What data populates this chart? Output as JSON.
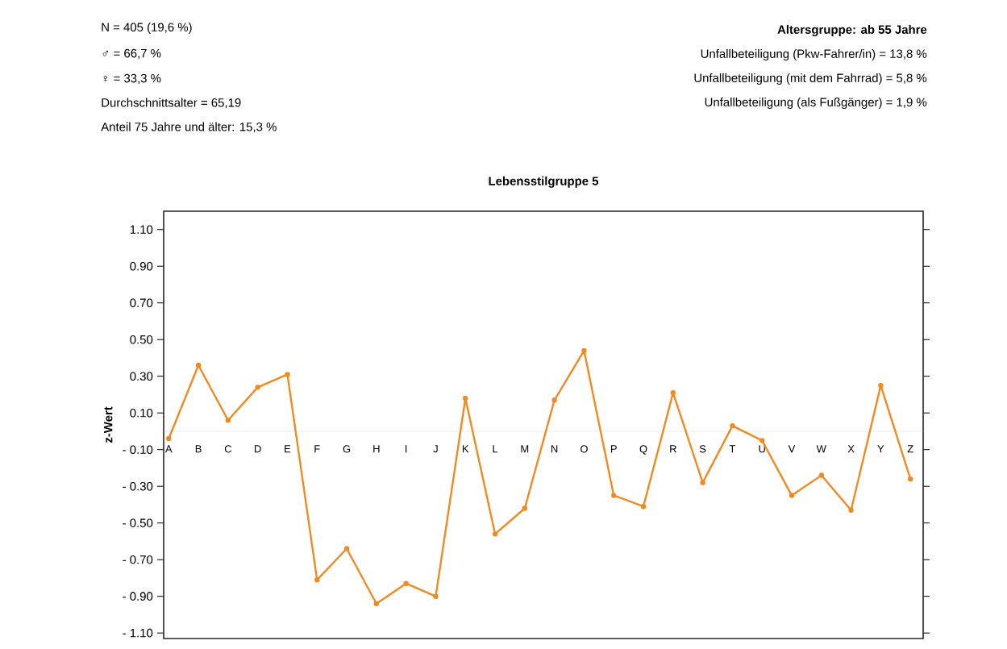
{
  "chart_data": {
    "type": "line",
    "title": "Lebensstilgruppe 5",
    "subtitle": "Altersgruppe: ab 55 Jahre",
    "ylabel": "z-Wert",
    "annotations": [
      "N  = 405 (19,6 %)",
      "♂ = 66,7 %",
      "♀ = 33,3 %",
      "Durchschnittsalter = 65,19",
      "Anteil 75 Jahre und älter:  15,3 %",
      "Unfallbeteiligung (Pkw-Fahrer/in) = 13,8 %",
      "Unfallbeteiligung (mit dem Fahrrad) = 5,8 %",
      "Unfallbeteiligung (als Fußgänger) = 1,9 %"
    ],
    "categories": [
      "A",
      "B",
      "C",
      "D",
      "E",
      "F",
      "G",
      "H",
      "I",
      "J",
      "K",
      "L",
      "M",
      "N",
      "O",
      "P",
      "Q",
      "R",
      "S",
      "T",
      "U",
      "V",
      "W",
      "X",
      "Y",
      "Z"
    ],
    "values": [
      -0.04,
      0.36,
      0.06,
      0.24,
      0.31,
      -0.81,
      -0.64,
      -0.94,
      -0.83,
      -0.9,
      0.18,
      -0.56,
      -0.42,
      0.17,
      0.44,
      -0.35,
      -0.41,
      0.21,
      -0.28,
      0.03,
      -0.05,
      -0.35,
      -0.24,
      -0.43,
      0.25,
      -0.26
    ],
    "color": "#f28a22",
    "marker": "circle",
    "line_style": "solid",
    "ylim": [
      -1.13,
      1.2
    ],
    "yticks": [
      {
        "value": 1.1,
        "label": "1.10"
      },
      {
        "value": 0.9,
        "label": "0.90"
      },
      {
        "value": 0.7,
        "label": "0.70"
      },
      {
        "value": 0.5,
        "label": "0.50"
      },
      {
        "value": 0.3,
        "label": "0.30"
      },
      {
        "value": 0.1,
        "label": "0.10"
      },
      {
        "value": -0.1,
        "label": "- 0.10"
      },
      {
        "value": -0.3,
        "label": "- 0.30"
      },
      {
        "value": -0.5,
        "label": "- 0.50"
      },
      {
        "value": -0.7,
        "label": "- 0.70"
      },
      {
        "value": -0.9,
        "label": "- 0.90"
      },
      {
        "value": -1.1,
        "label": "- 1.10"
      }
    ]
  }
}
